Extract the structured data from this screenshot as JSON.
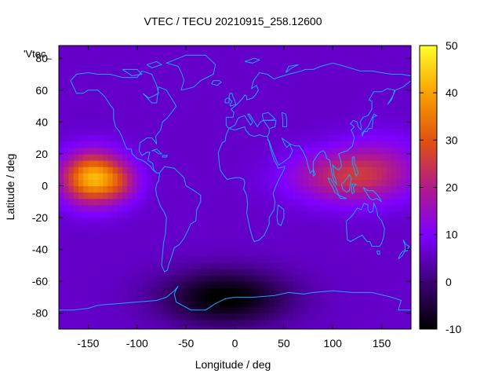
{
  "chart_data": {
    "type": "heatmap",
    "title": "VTEC / TECU 20210915_258.12600",
    "xlabel": "Longitude / deg",
    "ylabel": "Latitude / deg",
    "legend_key": "'Vtec_",
    "xlim": [
      -180,
      180
    ],
    "ylim": [
      -90,
      88
    ],
    "xticks": [
      -150,
      -100,
      -50,
      0,
      50,
      100,
      150
    ],
    "yticks": [
      -80,
      -60,
      -40,
      -20,
      0,
      20,
      40,
      60,
      80
    ],
    "colorbar": {
      "min": -10,
      "max": 50,
      "ticks": [
        -10,
        0,
        10,
        20,
        30,
        40,
        50
      ]
    },
    "grid_resolution_deg": {
      "lon": 5,
      "lat": 4
    },
    "features": [
      {
        "lon": -145,
        "lat": 5,
        "sigma_lon": 22,
        "sigma_lat": 11,
        "value": 36
      },
      {
        "lon": -115,
        "lat": 2,
        "sigma_lon": 14,
        "sigma_lat": 8,
        "value": 7
      },
      {
        "lon": 110,
        "lat": 6,
        "sigma_lon": 38,
        "sigma_lat": 11,
        "value": 16
      },
      {
        "lon": 150,
        "lat": 12,
        "sigma_lon": 30,
        "sigma_lat": 14,
        "value": 8
      },
      {
        "lon": -10,
        "lat": -70,
        "sigma_lon": 45,
        "sigma_lat": 12,
        "value": -17
      }
    ],
    "base_value": 6,
    "coastline_color": "#1aa6ff",
    "colormap": [
      "#000000",
      "#5a00b0",
      "#8a00ff",
      "#c03a80",
      "#e8660a",
      "#ffb000",
      "#ffff30"
    ]
  }
}
